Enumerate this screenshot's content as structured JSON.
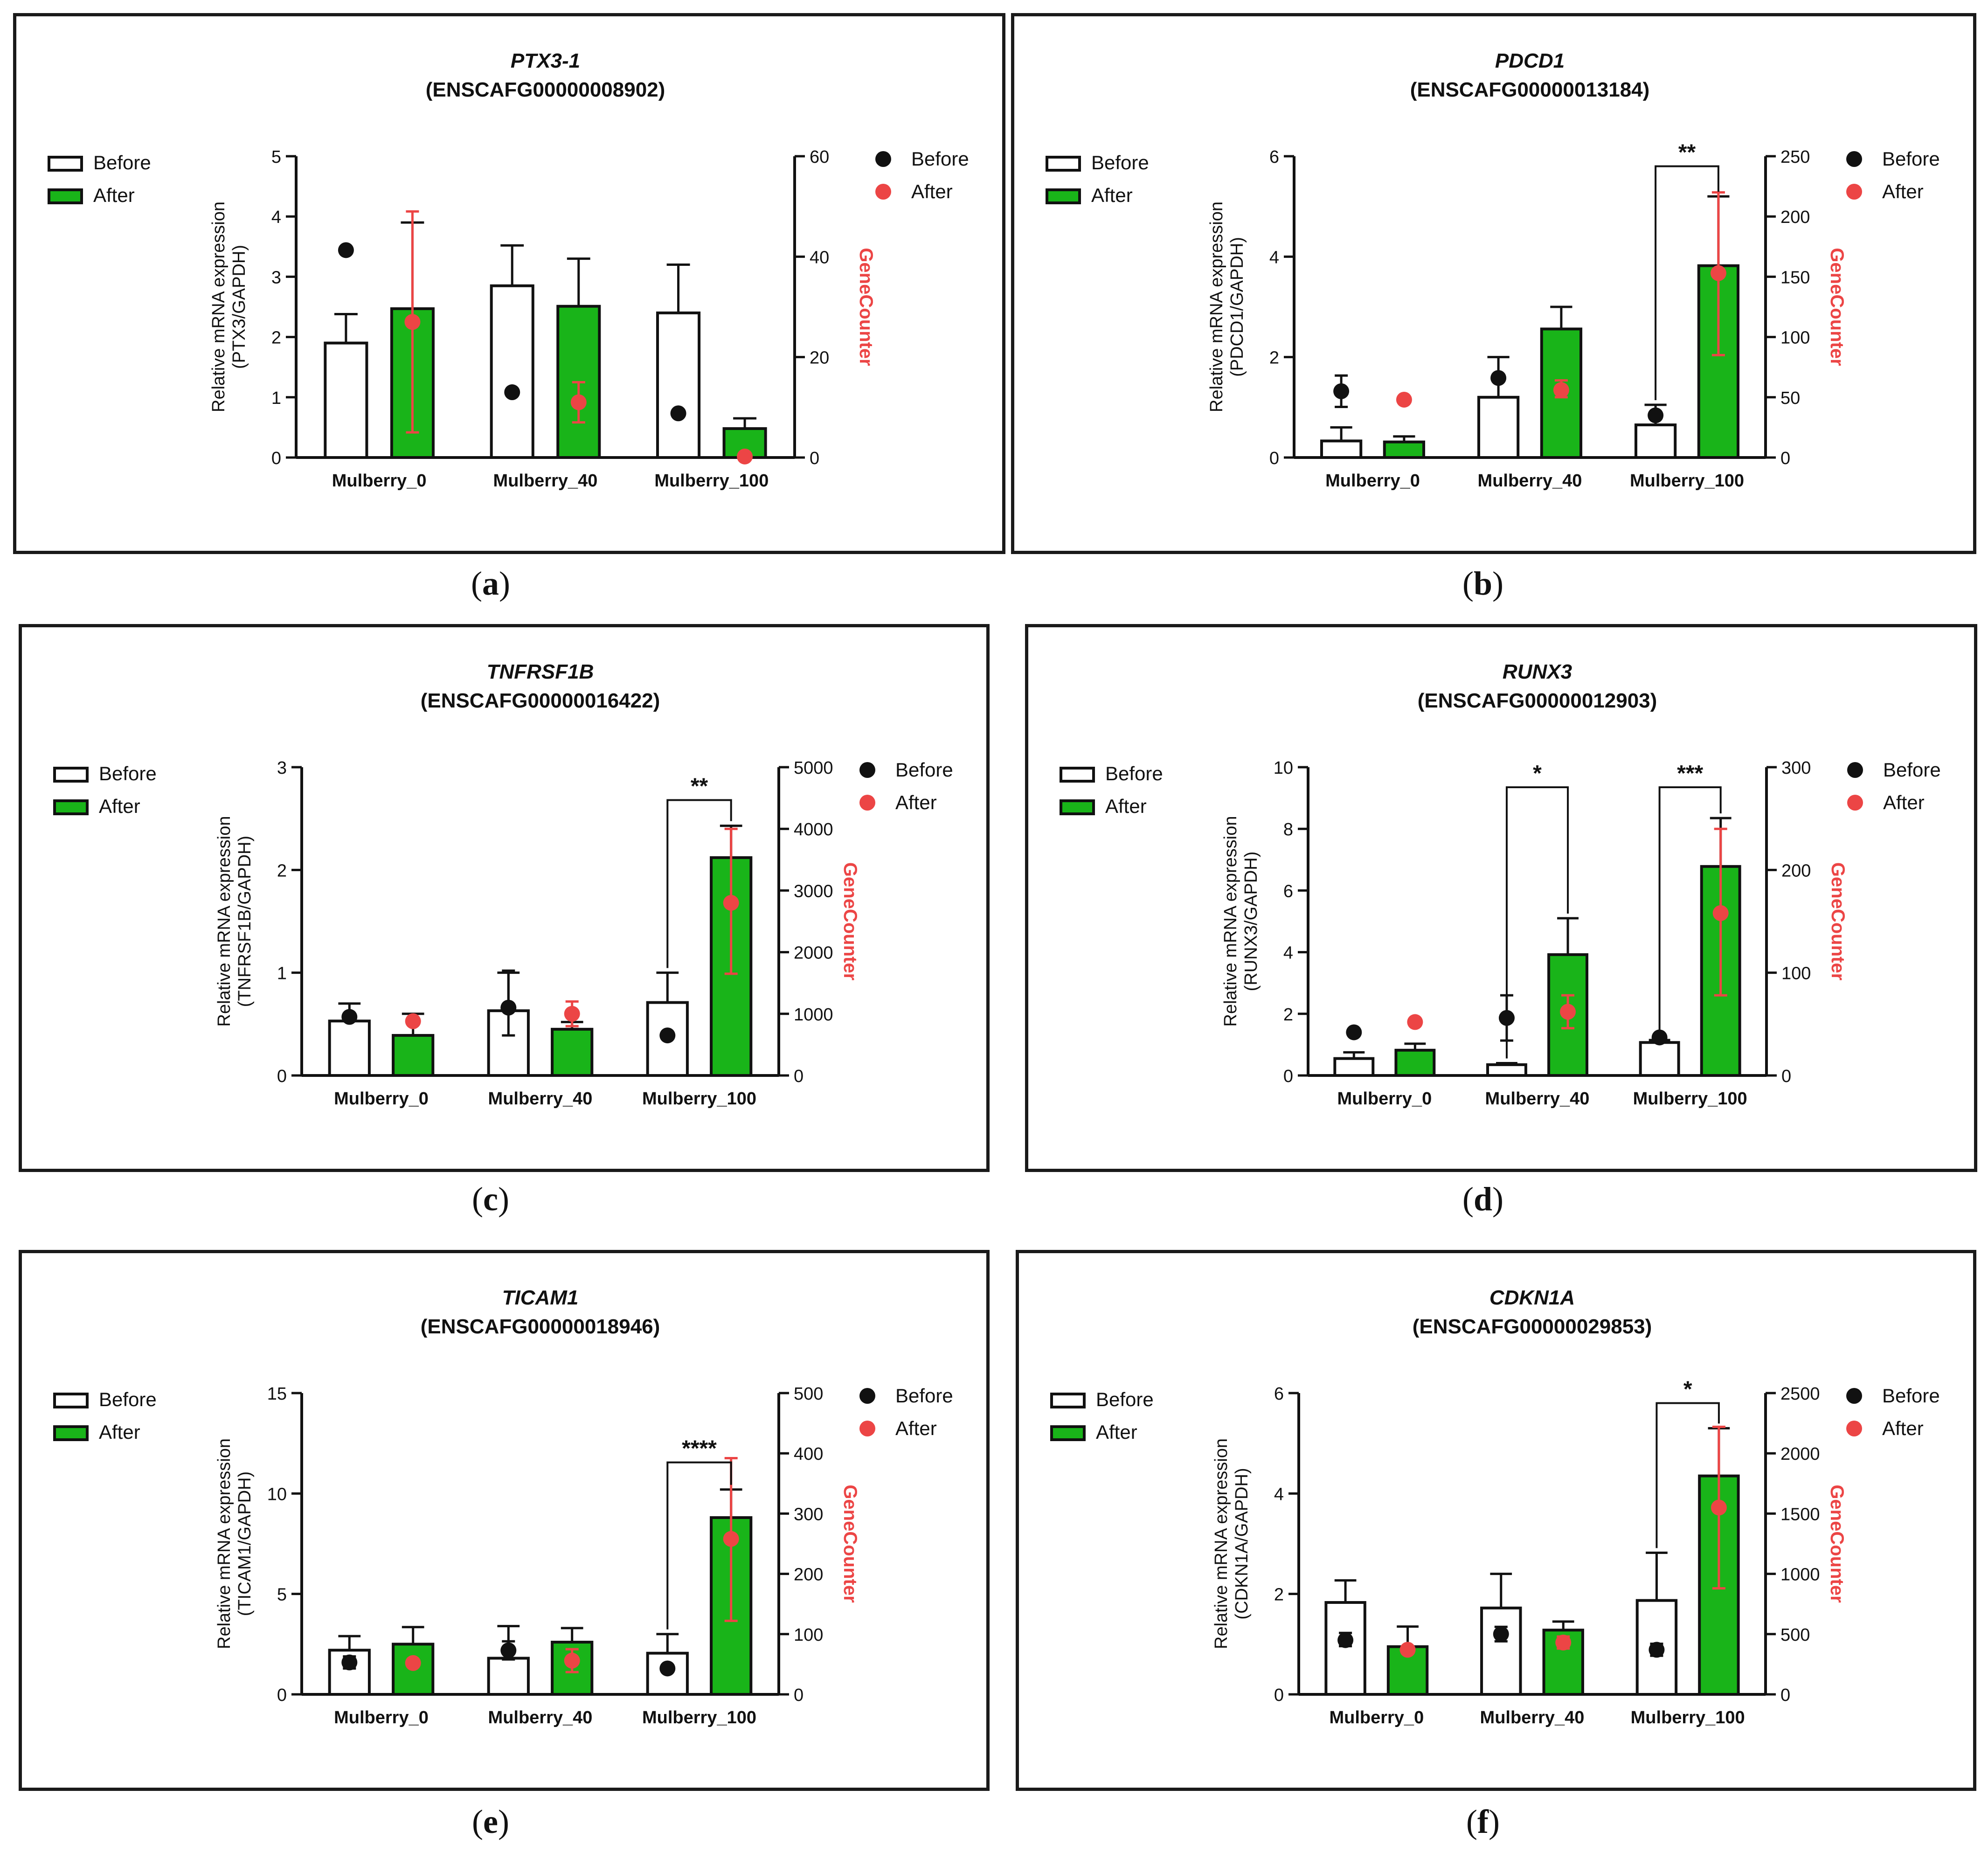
{
  "legend": {
    "bar_before": "Before",
    "bar_after": "After",
    "dot_before": "Before",
    "dot_after": "After"
  },
  "colors": {
    "green": "#19b419",
    "red": "#ec4545",
    "black": "#111111",
    "frame": "#1a1a1a"
  },
  "chart_data": [
    {
      "type": "bar",
      "panel": "a",
      "gene": "PTX3-1",
      "ensembl": "(ENSCAFG00000008902)",
      "ylabel": [
        "Relative mRNA expression",
        "(PTX3/GAPDH)"
      ],
      "y2label": "GeneCounter",
      "categories": [
        "Mulberry_0",
        "Mulberry_40",
        "Mulberry_100"
      ],
      "ylim": [
        0,
        5
      ],
      "yticks": [
        0,
        1,
        2,
        3,
        4,
        5
      ],
      "y2lim": [
        0,
        60
      ],
      "y2ticks": [
        0,
        20,
        40,
        60
      ],
      "series": [
        {
          "name": "Before",
          "axis": "left",
          "kind": "bar",
          "values": [
            1.9,
            2.85,
            2.4
          ],
          "err_hi": [
            2.38,
            3.52,
            3.2
          ],
          "err_lo": [
            1.9,
            2.85,
            2.4
          ]
        },
        {
          "name": "After",
          "axis": "left",
          "kind": "bar",
          "values": [
            2.47,
            2.51,
            0.48
          ],
          "err_hi": [
            3.9,
            3.3,
            0.65
          ],
          "err_lo": [
            2.47,
            2.51,
            0.48
          ]
        },
        {
          "name": "Before",
          "axis": "right",
          "kind": "dot",
          "values": [
            41.3,
            13.0,
            8.8
          ],
          "err_hi": [
            null,
            null,
            null
          ],
          "err_lo": [
            null,
            null,
            null
          ]
        },
        {
          "name": "After",
          "axis": "right",
          "kind": "dot",
          "values": [
            27.0,
            11.0,
            0.2
          ],
          "err_hi": [
            49.0,
            15.0,
            null
          ],
          "err_lo": [
            5.0,
            7.0,
            null
          ]
        }
      ],
      "significance": []
    },
    {
      "type": "bar",
      "panel": "b",
      "gene": "PDCD1",
      "ensembl": "(ENSCAFG00000013184)",
      "ylabel": [
        "Relative mRNA expression",
        "(PDCD1/GAPDH)"
      ],
      "y2label": "GeneCounter",
      "categories": [
        "Mulberry_0",
        "Mulberry_40",
        "Mulberry_100"
      ],
      "ylim": [
        0,
        6
      ],
      "yticks": [
        0,
        2,
        4,
        6
      ],
      "y2lim": [
        0,
        250
      ],
      "y2ticks": [
        0,
        50,
        100,
        150,
        200,
        250
      ],
      "series": [
        {
          "name": "Before",
          "axis": "left",
          "kind": "bar",
          "values": [
            0.33,
            1.2,
            0.65
          ],
          "err_hi": [
            0.6,
            2.0,
            1.05
          ],
          "err_lo": [
            0.33,
            1.2,
            0.65
          ]
        },
        {
          "name": "After",
          "axis": "left",
          "kind": "bar",
          "values": [
            0.31,
            2.56,
            3.82
          ],
          "err_hi": [
            0.42,
            3.0,
            5.2
          ],
          "err_lo": [
            0.31,
            2.56,
            3.82
          ]
        },
        {
          "name": "Before",
          "axis": "right",
          "kind": "dot",
          "values": [
            55,
            66,
            35
          ],
          "err_hi": [
            68,
            null,
            null
          ],
          "err_lo": [
            42,
            null,
            null
          ]
        },
        {
          "name": "After",
          "axis": "right",
          "kind": "dot",
          "values": [
            48,
            56,
            153
          ],
          "err_hi": [
            null,
            64,
            220
          ],
          "err_lo": [
            null,
            50,
            85
          ]
        }
      ],
      "significance": [
        {
          "category": 2,
          "label": "**",
          "level": 5.8
        }
      ]
    },
    {
      "type": "bar",
      "panel": "c",
      "gene": "TNFRSF1B",
      "ensembl": "(ENSCAFG00000016422)",
      "ylabel": [
        "Relative mRNA expression",
        "(TNFRSF1B/GAPDH)"
      ],
      "y2label": "GeneCounter",
      "categories": [
        "Mulberry_0",
        "Mulberry_40",
        "Mulberry_100"
      ],
      "ylim": [
        0,
        3
      ],
      "yticks": [
        0,
        1,
        2,
        3
      ],
      "y2lim": [
        0,
        5000
      ],
      "y2ticks": [
        0,
        1000,
        2000,
        3000,
        4000,
        5000
      ],
      "series": [
        {
          "name": "Before",
          "axis": "left",
          "kind": "bar",
          "values": [
            0.53,
            0.63,
            0.71
          ],
          "err_hi": [
            0.7,
            1.0,
            1.0
          ],
          "err_lo": [
            0.53,
            0.63,
            0.71
          ]
        },
        {
          "name": "After",
          "axis": "left",
          "kind": "bar",
          "values": [
            0.39,
            0.45,
            2.12
          ],
          "err_hi": [
            0.6,
            0.52,
            2.43
          ],
          "err_lo": [
            0.39,
            0.45,
            2.12
          ]
        },
        {
          "name": "Before",
          "axis": "right",
          "kind": "dot",
          "values": [
            950,
            1100,
            650
          ],
          "err_hi": [
            null,
            1700,
            null
          ],
          "err_lo": [
            null,
            650,
            null
          ]
        },
        {
          "name": "After",
          "axis": "right",
          "kind": "dot",
          "values": [
            880,
            1000,
            2800
          ],
          "err_hi": [
            null,
            1200,
            4000
          ],
          "err_lo": [
            null,
            800,
            1650
          ]
        }
      ],
      "significance": [
        {
          "category": 2,
          "label": "**",
          "level": 2.68
        }
      ]
    },
    {
      "type": "bar",
      "panel": "d",
      "gene": "RUNX3",
      "ensembl": "(ENSCAFG00000012903)",
      "ylabel": [
        "Relative mRNA expression",
        "(RUNX3/GAPDH)"
      ],
      "y2label": "GeneCounter",
      "categories": [
        "Mulberry_0",
        "Mulberry_40",
        "Mulberry_100"
      ],
      "ylim": [
        0,
        10
      ],
      "yticks": [
        0,
        2,
        4,
        6,
        8,
        10
      ],
      "y2lim": [
        0,
        300
      ],
      "y2ticks": [
        0,
        100,
        200,
        300
      ],
      "series": [
        {
          "name": "Before",
          "axis": "left",
          "kind": "bar",
          "values": [
            0.55,
            0.35,
            1.07
          ],
          "err_hi": [
            0.75,
            0.4,
            1.15
          ],
          "err_lo": [
            0.55,
            0.35,
            1.07
          ]
        },
        {
          "name": "After",
          "axis": "left",
          "kind": "bar",
          "values": [
            0.82,
            3.92,
            6.78
          ],
          "err_hi": [
            1.03,
            5.1,
            8.35
          ],
          "err_lo": [
            0.82,
            3.92,
            6.78
          ]
        },
        {
          "name": "Before",
          "axis": "right",
          "kind": "dot",
          "values": [
            42,
            56,
            37
          ],
          "err_hi": [
            null,
            78,
            null
          ],
          "err_lo": [
            null,
            34,
            null
          ]
        },
        {
          "name": "After",
          "axis": "right",
          "kind": "dot",
          "values": [
            52,
            62,
            158
          ],
          "err_hi": [
            null,
            78,
            240
          ],
          "err_lo": [
            null,
            46,
            78
          ]
        }
      ],
      "significance": [
        {
          "category": 1,
          "label": "*",
          "level": 9.35
        },
        {
          "category": 2,
          "label": "***",
          "level": 9.35
        }
      ]
    },
    {
      "type": "bar",
      "panel": "e",
      "gene": "TICAM1",
      "ensembl": "(ENSCAFG00000018946)",
      "ylabel": [
        "Relative mRNA expression",
        "(TICAM1/GAPDH)"
      ],
      "y2label": "GeneCounter",
      "categories": [
        "Mulberry_0",
        "Mulberry_40",
        "Mulberry_100"
      ],
      "ylim": [
        0,
        15
      ],
      "yticks": [
        0,
        5,
        10,
        15
      ],
      "y2lim": [
        0,
        500
      ],
      "y2ticks": [
        0,
        100,
        200,
        300,
        400,
        500
      ],
      "series": [
        {
          "name": "Before",
          "axis": "left",
          "kind": "bar",
          "values": [
            2.2,
            1.8,
            2.05
          ],
          "err_hi": [
            2.9,
            3.4,
            3.0
          ],
          "err_lo": [
            2.2,
            1.8,
            2.05
          ]
        },
        {
          "name": "After",
          "axis": "left",
          "kind": "bar",
          "values": [
            2.5,
            2.6,
            8.8
          ],
          "err_hi": [
            3.35,
            3.3,
            10.2
          ],
          "err_lo": [
            2.5,
            2.6,
            8.8
          ]
        },
        {
          "name": "Before",
          "axis": "right",
          "kind": "dot",
          "values": [
            53,
            73,
            43
          ],
          "err_hi": [
            63,
            88,
            null
          ],
          "err_lo": [
            43,
            58,
            null
          ]
        },
        {
          "name": "After",
          "axis": "right",
          "kind": "dot",
          "values": [
            52,
            56,
            258
          ],
          "err_hi": [
            null,
            75,
            392
          ],
          "err_lo": [
            null,
            37,
            122
          ]
        }
      ],
      "significance": [
        {
          "category": 2,
          "label": "****",
          "level": 11.55
        }
      ]
    },
    {
      "type": "bar",
      "panel": "f",
      "gene": "CDKN1A",
      "ensembl": "(ENSCAFG00000029853)",
      "ylabel": [
        "Relative mRNA expression",
        "(CDKN1A/GAPDH)"
      ],
      "y2label": "GeneCounter",
      "categories": [
        "Mulberry_0",
        "Mulberry_40",
        "Mulberry_100"
      ],
      "ylim": [
        0,
        6
      ],
      "yticks": [
        0,
        2,
        4,
        6
      ],
      "y2lim": [
        0,
        2500
      ],
      "y2ticks": [
        0,
        500,
        1000,
        1500,
        2000,
        2500
      ],
      "series": [
        {
          "name": "Before",
          "axis": "left",
          "kind": "bar",
          "values": [
            1.83,
            1.72,
            1.87
          ],
          "err_hi": [
            2.27,
            2.4,
            2.82
          ],
          "err_lo": [
            1.83,
            1.72,
            1.87
          ]
        },
        {
          "name": "After",
          "axis": "left",
          "kind": "bar",
          "values": [
            0.95,
            1.28,
            4.35
          ],
          "err_hi": [
            1.35,
            1.45,
            5.3
          ],
          "err_lo": [
            0.95,
            1.28,
            4.35
          ]
        },
        {
          "name": "Before",
          "axis": "right",
          "kind": "dot",
          "values": [
            450,
            500,
            370
          ],
          "err_hi": [
            510,
            560,
            420
          ],
          "err_lo": [
            400,
            440,
            320
          ]
        },
        {
          "name": "After",
          "axis": "right",
          "kind": "dot",
          "values": [
            370,
            430,
            1550
          ],
          "err_hi": [
            null,
            480,
            2220
          ],
          "err_lo": [
            null,
            380,
            880
          ]
        }
      ],
      "significance": [
        {
          "category": 2,
          "label": "*",
          "level": 5.8
        }
      ]
    }
  ],
  "captions": [
    "a",
    "b",
    "c",
    "d",
    "e",
    "f"
  ]
}
